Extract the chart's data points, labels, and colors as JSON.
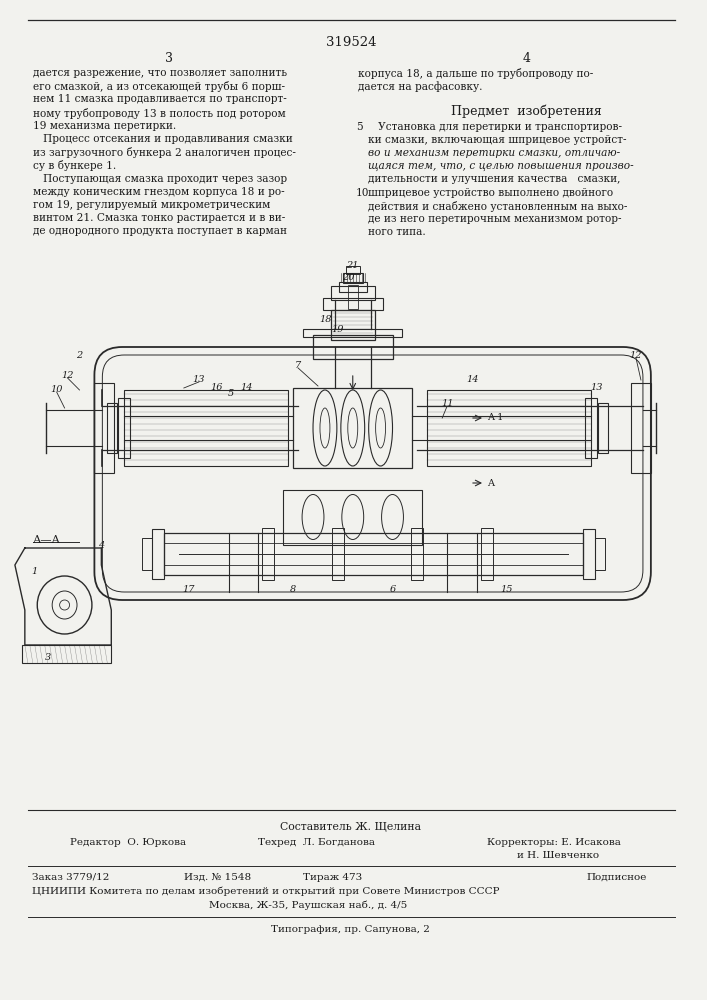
{
  "patent_number": "319524",
  "page_left": "3",
  "page_right": "4",
  "left_col_lines": [
    "дается разрежение, что позволяет заполнить",
    "его смазкой, а из отсекающей трубы 6 порш-",
    "нем 11 смазка продавливается по транспорт-",
    "ному трубопроводу 13 в полость под ротором",
    "19 механизма перетирки.",
    "   Процесс отсекания и продавливания смазки",
    "из загрузочного бункера 2 аналогичен процес-",
    "су в бункере 1.",
    "   Поступающая смазка проходит через зазор",
    "между коническим гнездом корпуса 18 и ро-",
    "гом 19, регулируемый микрометрическим",
    "винтом 21. Смазка тонко растирается и в ви-",
    "де однородного продукта поступает в карман"
  ],
  "right_col_top": [
    "корпуса 18, а дальше по трубопроводу по-",
    "дается на расфасовку."
  ],
  "predmet_heading": "Предмет  изобретения",
  "predmet_lines": [
    [
      "5",
      "   Установка для перетирки и транспортиров-",
      false
    ],
    [
      "",
      "ки смазки, включающая шприцевое устройст-",
      false
    ],
    [
      "",
      "во и механизм перетирки смазки, отличаю-",
      true
    ],
    [
      "",
      "щаяся тем, что, с целью повышения произво-",
      true
    ],
    [
      "",
      "дительности и улучшения качества   смазки,",
      false
    ],
    [
      "10",
      "шприцевое устройство выполнено двойного",
      false
    ],
    [
      "",
      "действия и снабжено установленным на выхо-",
      false
    ],
    [
      "",
      "де из него перетирочным механизмом ротор-",
      false
    ],
    [
      "",
      "ного типа.",
      false
    ]
  ],
  "bottom_sostavitel": "Составитель Ж. Щелина",
  "bottom_editor": "Редактор  О. Юркова",
  "bottom_tekhred": "Техред  Л. Богданова",
  "bottom_korr1": "Корректоры: Е. Исакова",
  "bottom_korr2": "и Н. Шевченко",
  "bottom_zakaz": "Заказ 3779/12",
  "bottom_izd": "Изд. № 1548",
  "bottom_tirazh": "Тираж 473",
  "bottom_podpis": "Подписное",
  "bottom_tsniip": "ЦНИИПИ Комитета по делам изобретений и открытий при Совете Министров СССР",
  "bottom_moskva": "Москва, Ж-35, Раушская наб., д. 4/5",
  "bottom_tipografiya": "Типография, пр. Сапунова, 2",
  "bg_color": "#f2f2ee",
  "text_color": "#1c1c1c",
  "line_color": "#2a2a2a",
  "draw_color": "#2a2a2a"
}
